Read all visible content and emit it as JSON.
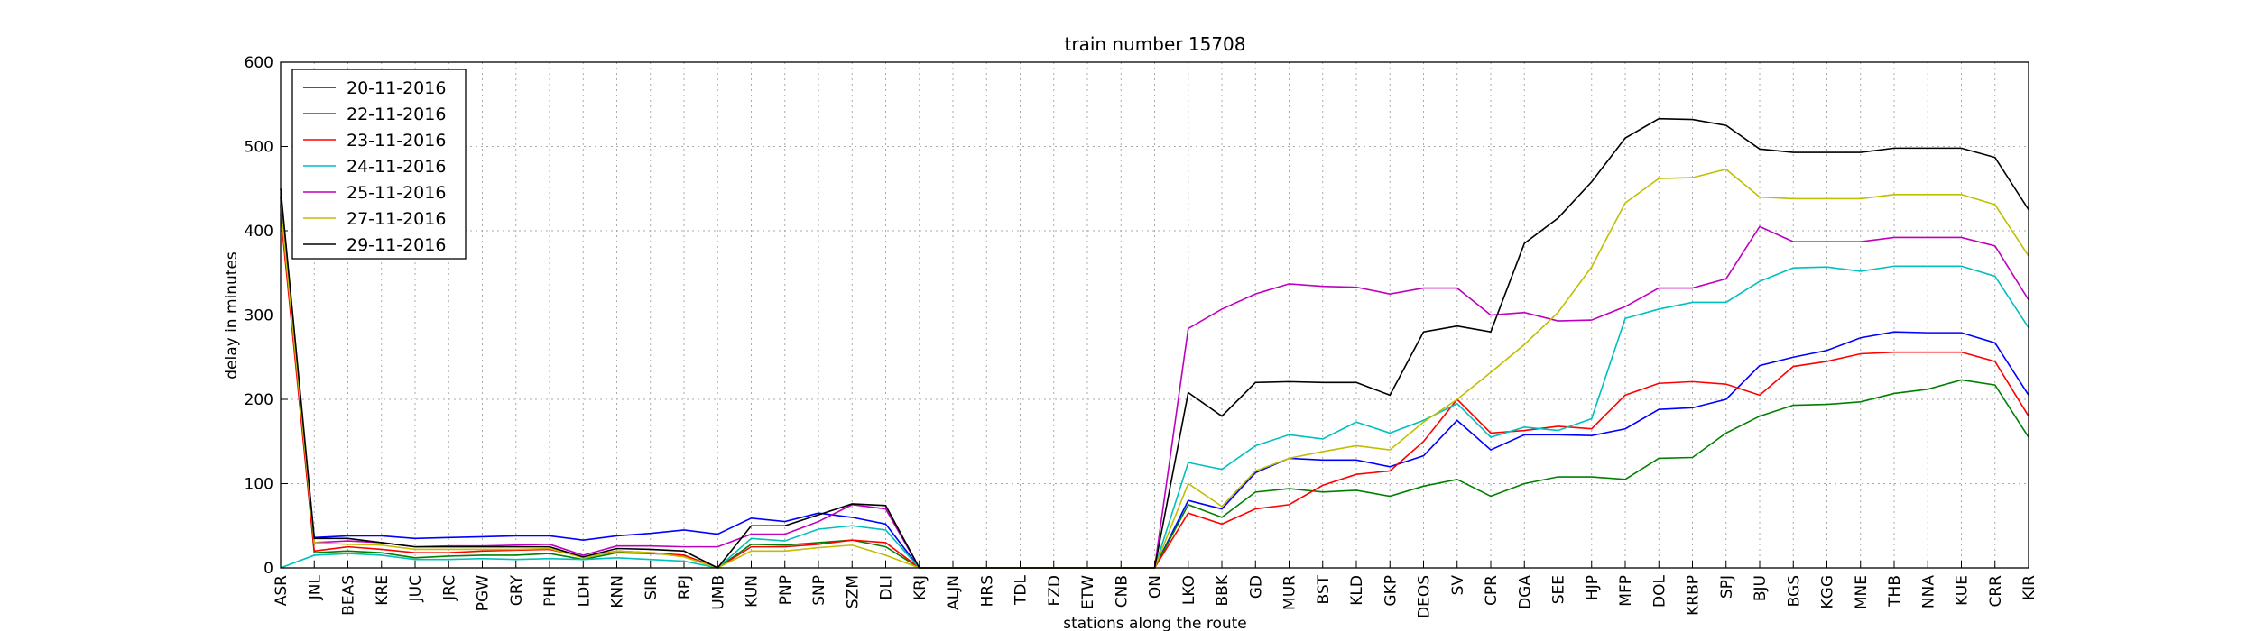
{
  "chart_data": {
    "type": "line",
    "title": "train number 15708",
    "x_label": "stations along the route",
    "y_label": "delay in minutes",
    "categories": [
      "ASR",
      "JNL",
      "BEAS",
      "KRE",
      "JUC",
      "JRC",
      "PGW",
      "GRY",
      "PHR",
      "LDH",
      "KNN",
      "SIR",
      "RPJ",
      "UMB",
      "KUN",
      "PNP",
      "SNP",
      "SZM",
      "DLI",
      "KRJ",
      "ALJN",
      "HRS",
      "TDL",
      "FZD",
      "ETW",
      "CNB",
      "ON",
      "LKO",
      "BBK",
      "GD",
      "MUR",
      "BST",
      "KLD",
      "GKP",
      "DEOS",
      "SV",
      "CPR",
      "DGA",
      "SEE",
      "HJP",
      "MFP",
      "DOL",
      "KRBP",
      "SPJ",
      "BJU",
      "BGS",
      "KGG",
      "MNE",
      "THB",
      "NNA",
      "KUE",
      "CRR",
      "KIR"
    ],
    "ylim": [
      0,
      600
    ],
    "yticks": [
      0,
      100,
      200,
      300,
      400,
      500,
      600
    ],
    "grid": true,
    "legend": "upper left",
    "series": [
      {
        "name": "20-11-2016",
        "color": "#0000ff",
        "values": [
          440,
          36,
          38,
          38,
          35,
          36,
          37,
          38,
          38,
          33,
          38,
          41,
          45,
          40,
          59,
          55,
          65,
          60,
          52,
          0,
          0,
          0,
          0,
          0,
          0,
          0,
          0,
          80,
          70,
          113,
          130,
          128,
          128,
          120,
          133,
          175,
          140,
          158,
          158,
          157,
          165,
          188,
          190,
          200,
          240,
          250,
          258,
          273,
          280,
          279,
          279,
          267,
          205
        ]
      },
      {
        "name": "22-11-2016",
        "color": "#008000",
        "values": [
          430,
          18,
          20,
          18,
          12,
          14,
          15,
          15,
          17,
          10,
          18,
          17,
          15,
          0,
          28,
          27,
          30,
          33,
          25,
          0,
          0,
          0,
          0,
          0,
          0,
          0,
          0,
          75,
          60,
          90,
          94,
          90,
          92,
          85,
          97,
          105,
          85,
          100,
          108,
          108,
          105,
          130,
          131,
          160,
          180,
          193,
          194,
          197,
          207,
          212,
          223,
          217,
          155
        ]
      },
      {
        "name": "23-11-2016",
        "color": "#ff0000",
        "values": [
          420,
          20,
          25,
          22,
          18,
          18,
          20,
          21,
          22,
          13,
          20,
          18,
          15,
          0,
          25,
          25,
          28,
          33,
          30,
          0,
          0,
          0,
          0,
          0,
          0,
          0,
          0,
          65,
          52,
          70,
          75,
          98,
          111,
          115,
          150,
          200,
          160,
          163,
          168,
          165,
          205,
          219,
          221,
          218,
          205,
          239,
          245,
          254,
          256,
          256,
          256,
          245,
          180
        ]
      },
      {
        "name": "24-11-2016",
        "color": "#00bfbf",
        "values": [
          0,
          15,
          17,
          15,
          10,
          10,
          11,
          10,
          11,
          10,
          12,
          10,
          8,
          0,
          35,
          32,
          46,
          50,
          45,
          0,
          0,
          0,
          0,
          0,
          0,
          0,
          0,
          125,
          117,
          145,
          158,
          153,
          173,
          160,
          175,
          195,
          155,
          167,
          163,
          177,
          296,
          307,
          315,
          315,
          340,
          356,
          357,
          352,
          358,
          358,
          358,
          346,
          285
        ]
      },
      {
        "name": "25-11-2016",
        "color": "#bf00bf",
        "values": [
          430,
          30,
          32,
          30,
          25,
          26,
          26,
          27,
          28,
          15,
          26,
          26,
          25,
          25,
          40,
          40,
          55,
          75,
          70,
          0,
          0,
          0,
          0,
          0,
          0,
          0,
          0,
          284,
          307,
          325,
          337,
          334,
          333,
          325,
          332,
          332,
          300,
          303,
          293,
          294,
          310,
          332,
          332,
          343,
          405,
          387,
          387,
          387,
          392,
          392,
          392,
          382,
          318
        ]
      },
      {
        "name": "27-11-2016",
        "color": "#bfbf00",
        "values": [
          430,
          30,
          28,
          27,
          22,
          22,
          22,
          22,
          23,
          12,
          20,
          18,
          13,
          0,
          20,
          20,
          24,
          27,
          15,
          0,
          0,
          0,
          0,
          0,
          0,
          0,
          0,
          100,
          73,
          115,
          130,
          138,
          145,
          140,
          173,
          200,
          232,
          265,
          303,
          357,
          433,
          462,
          463,
          473,
          440,
          438,
          438,
          438,
          443,
          443,
          443,
          431,
          370
        ]
      },
      {
        "name": "29-11-2016",
        "color": "#000000",
        "values": [
          450,
          35,
          35,
          30,
          25,
          25,
          25,
          25,
          25,
          13,
          23,
          22,
          20,
          0,
          50,
          50,
          63,
          76,
          74,
          0,
          0,
          0,
          0,
          0,
          0,
          0,
          0,
          208,
          180,
          220,
          221,
          220,
          220,
          205,
          280,
          287,
          280,
          385,
          415,
          458,
          510,
          533,
          532,
          525,
          497,
          493,
          493,
          493,
          498,
          498,
          498,
          487,
          425
        ]
      }
    ]
  }
}
